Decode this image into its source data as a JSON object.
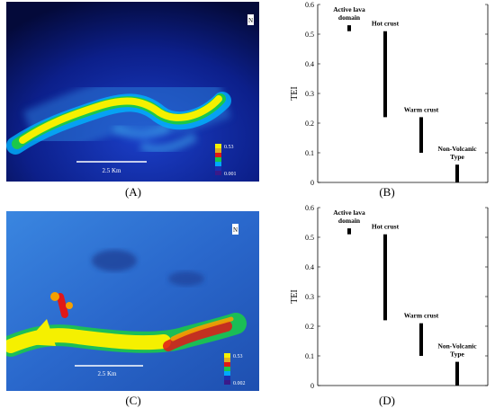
{
  "panels": {
    "a": {
      "caption": "(A)",
      "scalebar_label": "2.5 Km",
      "legend_max": "0.53",
      "legend_min": "0.001"
    },
    "b": {
      "caption": "(B)"
    },
    "c": {
      "caption": "(C)",
      "scalebar_label": "2.5 Km",
      "legend_max": "0.53",
      "legend_min": "0.002"
    },
    "d": {
      "caption": "(D)"
    }
  },
  "map_colors": {
    "background_dark": "#081060",
    "background_c": "#2a64c8",
    "hot": "#f5f000",
    "mid": "#1bc84a",
    "edge": "#00a8ff",
    "red": "#e01818"
  },
  "chart_data": [
    {
      "type": "range_bar",
      "ylabel": "TEI",
      "ylim": [
        0,
        0.6
      ],
      "yticks": [
        "0",
        "0.1",
        "0.2",
        "0.3",
        "0.4",
        "0.5",
        "0.6"
      ],
      "categories": [
        "Active lava domain",
        "Hot crust",
        "Warm crust",
        "Non-Volcanic Type"
      ],
      "labels": [
        [
          "Active lava",
          "domain"
        ],
        [
          "Hot crust"
        ],
        [
          "Warm crust"
        ],
        [
          "Non-Volcanic",
          "Type"
        ]
      ],
      "ranges": [
        [
          0.51,
          0.53
        ],
        [
          0.22,
          0.51
        ],
        [
          0.1,
          0.22
        ],
        [
          0.0,
          0.06
        ]
      ],
      "grid": false
    },
    {
      "type": "range_bar",
      "ylabel": "TEI",
      "ylim": [
        0,
        0.6
      ],
      "yticks": [
        "0",
        "0.1",
        "0.2",
        "0.3",
        "0.4",
        "0.5",
        "0.6"
      ],
      "categories": [
        "Active lava domain",
        "Hot crust",
        "Warm crust",
        "Non-Volcanic Type"
      ],
      "labels": [
        [
          "Active lava",
          "domain"
        ],
        [
          "Hot crust"
        ],
        [
          "Warm crust"
        ],
        [
          "Non-Volcanic",
          "Type"
        ]
      ],
      "ranges": [
        [
          0.51,
          0.53
        ],
        [
          0.22,
          0.51
        ],
        [
          0.1,
          0.21
        ],
        [
          0.0,
          0.08
        ]
      ],
      "grid": false
    }
  ]
}
